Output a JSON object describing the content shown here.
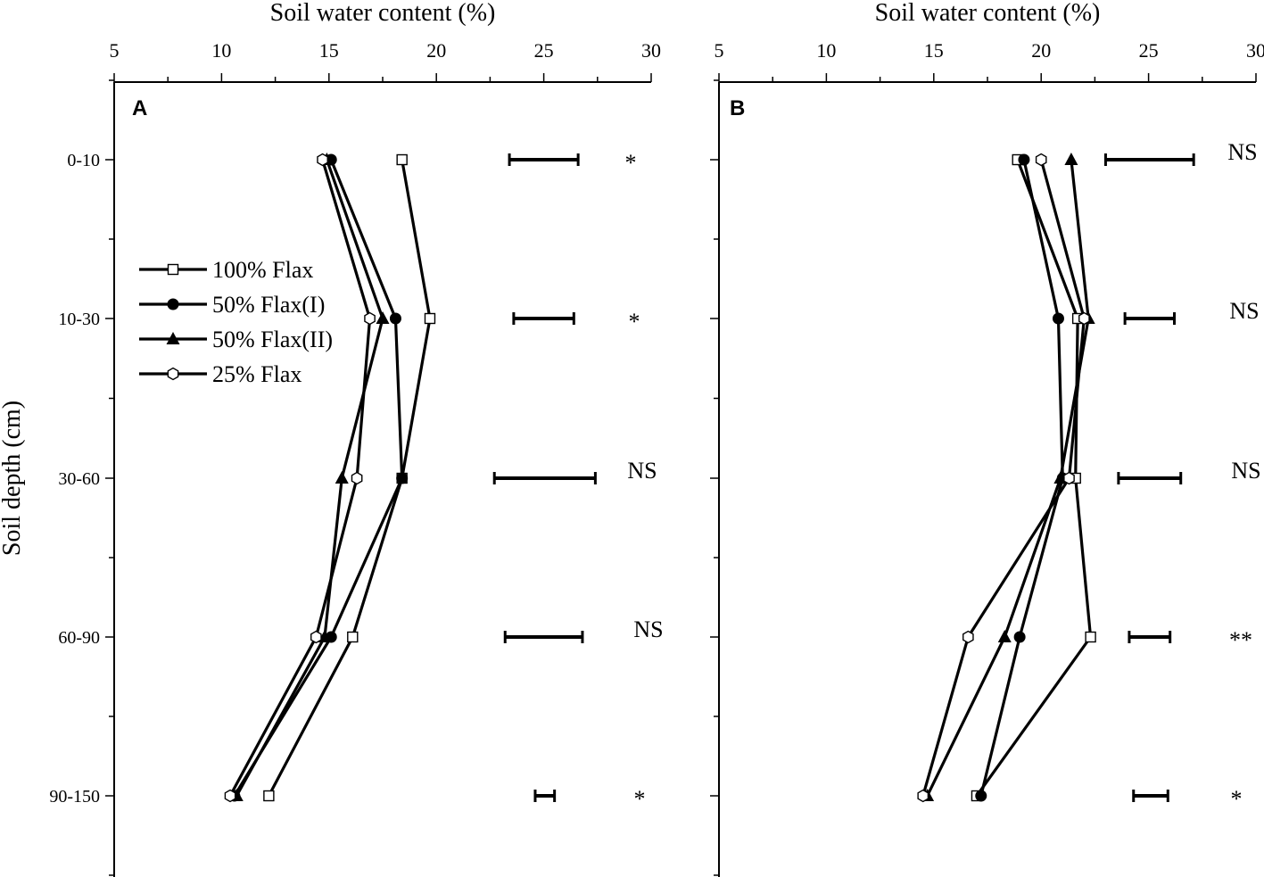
{
  "figure": {
    "y_axis_label": "Soil depth (cm)",
    "depth_categories": [
      "0-10",
      "10-30",
      "30-60",
      "60-90",
      "90-150"
    ]
  },
  "chart_data": [
    {
      "type": "line",
      "panel": "A",
      "xlabel": "Soil water content (%)",
      "ylabel": "Soil depth (cm)",
      "xlim": [
        5,
        30
      ],
      "x_ticks": [
        5,
        10,
        15,
        20,
        25,
        30
      ],
      "x_axis_position": "top",
      "categories": [
        "0-10",
        "10-30",
        "30-60",
        "60-90",
        "90-150"
      ],
      "legend_position": "left, upper-middle",
      "series": [
        {
          "name": "100% Flax",
          "marker": "square-open",
          "values": [
            18.4,
            19.7,
            18.4,
            16.1,
            12.2
          ]
        },
        {
          "name": "50% Flax(I)",
          "marker": "circle-filled",
          "values": [
            15.1,
            18.1,
            18.4,
            15.1,
            10.6
          ]
        },
        {
          "name": "50% Flax(II)",
          "marker": "triangle-filled",
          "values": [
            14.9,
            17.5,
            15.6,
            14.8,
            10.7
          ]
        },
        {
          "name": "25% Flax",
          "marker": "hexagon-open",
          "values": [
            14.7,
            16.9,
            16.3,
            14.4,
            10.4
          ]
        }
      ],
      "error_bars": [
        {
          "category": "0-10",
          "low": 23.4,
          "high": 26.6
        },
        {
          "category": "10-30",
          "low": 23.6,
          "high": 26.4
        },
        {
          "category": "30-60",
          "low": 22.7,
          "high": 27.4
        },
        {
          "category": "60-90",
          "low": 23.2,
          "high": 26.8
        },
        {
          "category": "90-150",
          "low": 24.6,
          "high": 25.5
        }
      ],
      "significance": [
        "*",
        "*",
        "NS",
        "NS",
        "*"
      ]
    },
    {
      "type": "line",
      "panel": "B",
      "xlabel": "Soil water content (%)",
      "ylabel": "",
      "xlim": [
        5,
        30
      ],
      "x_ticks": [
        5,
        10,
        15,
        20,
        25,
        30
      ],
      "x_axis_position": "top",
      "categories": [
        "0-10",
        "10-30",
        "30-60",
        "60-90",
        "90-150"
      ],
      "series": [
        {
          "name": "100% Flax",
          "marker": "square-open",
          "values": [
            18.9,
            21.7,
            21.6,
            22.3,
            17.0
          ]
        },
        {
          "name": "50% Flax(I)",
          "marker": "circle-filled",
          "values": [
            19.2,
            20.8,
            21.0,
            19.0,
            17.2
          ]
        },
        {
          "name": "50% Flax(II)",
          "marker": "triangle-filled",
          "values": [
            21.4,
            22.2,
            20.9,
            18.3,
            14.7
          ]
        },
        {
          "name": "25% Flax",
          "marker": "hexagon-open",
          "values": [
            20.0,
            22.0,
            21.3,
            16.6,
            14.5
          ]
        }
      ],
      "error_bars": [
        {
          "category": "0-10",
          "low": 23.0,
          "high": 27.1
        },
        {
          "category": "10-30",
          "low": 23.9,
          "high": 26.2
        },
        {
          "category": "30-60",
          "low": 23.6,
          "high": 26.5
        },
        {
          "category": "60-90",
          "low": 24.1,
          "high": 26.0
        },
        {
          "category": "90-150",
          "low": 24.3,
          "high": 25.9
        }
      ],
      "significance": [
        "NS",
        "NS",
        "NS",
        "**",
        "*"
      ]
    }
  ]
}
